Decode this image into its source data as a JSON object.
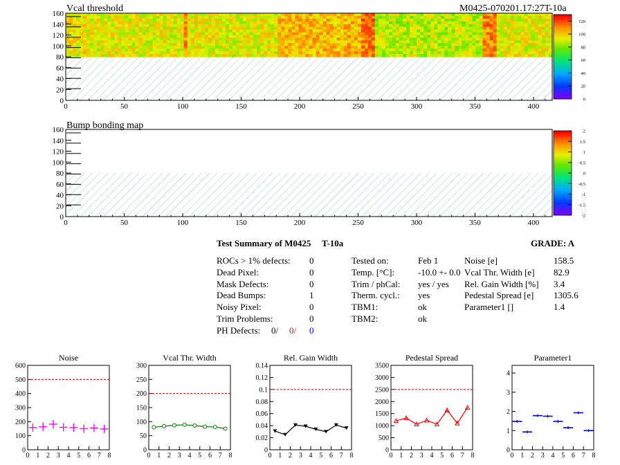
{
  "page": {
    "module_id": "M0425-070201.17:27T-10a"
  },
  "maps": [
    {
      "title": "Vcal threshold",
      "x_ticks": [
        "0",
        "50",
        "100",
        "150",
        "200",
        "250",
        "300",
        "350",
        "400"
      ],
      "y_ticks": [
        "0",
        "20",
        "40",
        "60",
        "80",
        "100",
        "120",
        "140",
        "160"
      ],
      "colorbar_ticks": [
        "0",
        "20",
        "40",
        "60",
        "80",
        "100",
        "120"
      ],
      "range": [
        0,
        130
      ]
    },
    {
      "title": "Bump bonding map",
      "x_ticks": [
        "0",
        "50",
        "100",
        "150",
        "200",
        "250",
        "300",
        "350",
        "400"
      ],
      "y_ticks": [
        "0",
        "20",
        "40",
        "60",
        "80",
        "100",
        "120",
        "140",
        "160"
      ],
      "colorbar_ticks": [
        "-2",
        "-1.5",
        "-1",
        "-0.5",
        "0",
        "0.5",
        "1",
        "1.5",
        "2"
      ],
      "range": [
        -2,
        2
      ]
    }
  ],
  "summary": {
    "title": "Test Summary of M0425",
    "temp_label": "T-10a",
    "grade": "GRADE:  A",
    "defects": [
      {
        "label": "ROCs > 1% defects:",
        "value": "0"
      },
      {
        "label": "Dead Pixel:",
        "value": "0"
      },
      {
        "label": "Mask Defects:",
        "value": "0"
      },
      {
        "label": "Dead Bumps:",
        "value": "1"
      },
      {
        "label": "Noisy Pixel:",
        "value": "0"
      },
      {
        "label": "Trim Problems:",
        "value": "0"
      }
    ],
    "ph_defects": {
      "label": "PH Defects:",
      "v1": "0/",
      "v2": "0/",
      "v3": "0",
      "c2": "#ff0000",
      "c3": "#0000ff"
    },
    "conditions": [
      {
        "label": "Tested on:",
        "value": "Feb 1"
      },
      {
        "label": "Temp. [°C]:",
        "value": "-10.0 +- 0.0"
      },
      {
        "label": "Trim / phCal:",
        "value": "yes / yes"
      },
      {
        "label": "Therm. cycl.:",
        "value": "yes"
      },
      {
        "label": "TBM1:",
        "value": "ok"
      },
      {
        "label": "TBM2:",
        "value": "ok"
      }
    ],
    "measurements": [
      {
        "label": "Noise [e]",
        "value": "158.5"
      },
      {
        "label": "Vcal Thr. Width [e]",
        "value": "82.9"
      },
      {
        "label": "Rel. Gain Width [%]",
        "value": "3.4"
      },
      {
        "label": "Pedestal Spread [e]",
        "value": "1305.6"
      },
      {
        "label": "Parameter1 []",
        "value": "1.4"
      }
    ]
  },
  "chart_data": [
    {
      "type": "scatter",
      "title": "Noise",
      "color": "#ff00ff",
      "marker": "cross",
      "x": [
        0.5,
        1.5,
        2.5,
        3.5,
        4.5,
        5.5,
        6.5,
        7.5
      ],
      "values": [
        158,
        163,
        182,
        160,
        158,
        150,
        155,
        148
      ],
      "ylim": [
        0,
        600
      ],
      "y_ticks": [
        "0",
        "100",
        "200",
        "300",
        "400",
        "500",
        "600"
      ],
      "x_ticks": [
        "0",
        "1",
        "2",
        "3",
        "4",
        "5",
        "6",
        "7",
        "8"
      ],
      "ref_line": 500,
      "ref_color": "#cc0000"
    },
    {
      "type": "line",
      "title": "Vcal Thr. Width",
      "color": "#008000",
      "marker": "circle",
      "x": [
        0.5,
        1.5,
        2.5,
        3.5,
        4.5,
        5.5,
        6.5,
        7.5
      ],
      "values": [
        80,
        84,
        87,
        89,
        86,
        82,
        81,
        75
      ],
      "ylim": [
        0,
        300
      ],
      "y_ticks": [
        "0",
        "50",
        "100",
        "150",
        "200",
        "250",
        "300"
      ],
      "x_ticks": [
        "0",
        "1",
        "2",
        "3",
        "4",
        "5",
        "6",
        "7",
        "8"
      ],
      "ref_line": 200,
      "ref_color": "#cc0000"
    },
    {
      "type": "line",
      "title": "Rel. Gain Width",
      "color": "#000000",
      "marker": "triangle-down",
      "x": [
        0.5,
        1.5,
        2.5,
        3.5,
        4.5,
        5.5,
        6.5,
        7.5
      ],
      "values": [
        0.031,
        0.025,
        0.041,
        0.039,
        0.034,
        0.03,
        0.041,
        0.036
      ],
      "ylim": [
        0,
        0.14
      ],
      "y_ticks": [
        "0",
        "0.02",
        "0.04",
        "0.06",
        "0.08",
        "0.1",
        "0.12",
        "0.14"
      ],
      "x_ticks": [
        "0",
        "1",
        "2",
        "3",
        "4",
        "5",
        "6",
        "7",
        "8"
      ],
      "ref_line": 0.1,
      "ref_color": "#cc0000"
    },
    {
      "type": "line",
      "title": "Pedestal Spread",
      "color": "#ff0000",
      "marker": "triangle-up",
      "x": [
        0.5,
        1.5,
        2.5,
        3.5,
        4.5,
        5.5,
        6.5,
        7.5
      ],
      "values": [
        1200,
        1320,
        1060,
        1220,
        1060,
        1640,
        1100,
        1750
      ],
      "ylim": [
        0,
        3500
      ],
      "y_ticks": [
        "0",
        "500",
        "1000",
        "1500",
        "2000",
        "2500",
        "3000",
        "3500"
      ],
      "x_ticks": [
        "0",
        "1",
        "2",
        "3",
        "4",
        "5",
        "6",
        "7",
        "8"
      ],
      "ref_line": 2500,
      "ref_color": "#cc0000"
    },
    {
      "type": "scatter",
      "title": "Parameter1",
      "color": "#0000cc",
      "marker": "hbar",
      "x": [
        0.5,
        1.5,
        2.5,
        3.5,
        4.5,
        5.5,
        6.5,
        7.5
      ],
      "values": [
        1.48,
        0.93,
        1.78,
        1.75,
        1.48,
        1.15,
        1.93,
        1.0
      ],
      "ylim": [
        0,
        4.4
      ],
      "y_ticks": [
        "0",
        "1",
        "2",
        "3",
        "4"
      ],
      "x_ticks": [
        "0",
        "1",
        "2",
        "3",
        "4",
        "5",
        "6",
        "7",
        "8"
      ],
      "ref_line": null,
      "ref_color": "#cc0000"
    }
  ]
}
